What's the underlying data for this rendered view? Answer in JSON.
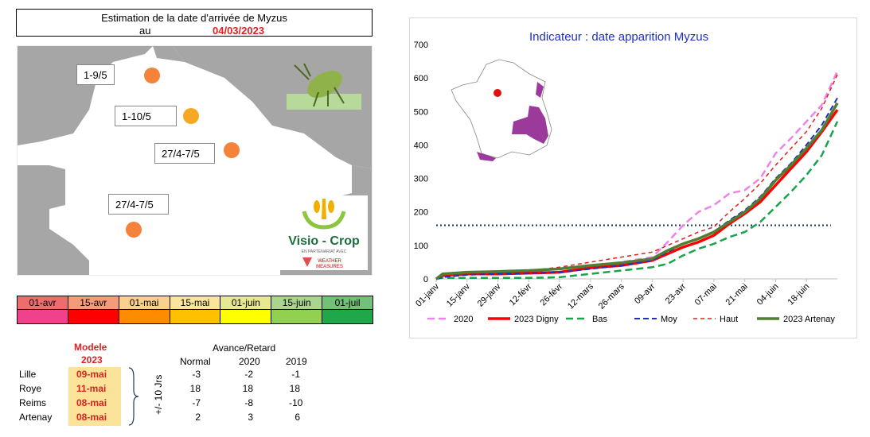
{
  "header": {
    "title": "Estimation de la date d'arrivée de Myzus",
    "au_label": "au",
    "date": "04/03/2023"
  },
  "map_labels": [
    {
      "text": "1-9/5",
      "color": "#f5823a"
    },
    {
      "text": "1-10/5",
      "color": "#f7a823"
    },
    {
      "text": "27/4-7/5",
      "color": "#f5823a"
    },
    {
      "text": "27/4-7/5",
      "color": "#f5823a"
    }
  ],
  "logo": {
    "line1": "Visio - Crop",
    "line2": "EN PARTENARIAT AVEC",
    "line3": "WEATHER MEASURES"
  },
  "scale": {
    "labels": [
      "01-avr",
      "15-avr",
      "01-mai",
      "15-mai",
      "01-juin",
      "15-juin",
      "01-juil"
    ],
    "top_colors": [
      "#ef6c6c",
      "#f79a7a",
      "#fbcf8c",
      "#fbe59b",
      "#e8e98f",
      "#a9d68f",
      "#72c178"
    ],
    "bottom_colors": [
      "#f0418d",
      "#ff0000",
      "#ff8c00",
      "#ffc000",
      "#ffff00",
      "#92d050",
      "#1fa84a"
    ]
  },
  "table": {
    "modele_label": "Modele",
    "year_label": "2023",
    "avance_label": "Avance/Retard",
    "cols": [
      "Normal",
      "2020",
      "2019"
    ],
    "side_label": "+/- 10 Jrs",
    "rows": [
      {
        "site": "Lille",
        "date": "09-mai",
        "vals": [
          "-3",
          "-2",
          "-1"
        ]
      },
      {
        "site": "Roye",
        "date": "11-mai",
        "vals": [
          "18",
          "18",
          "18"
        ]
      },
      {
        "site": "Reims",
        "date": "08-mai",
        "vals": [
          "-7",
          "-8",
          "-10"
        ]
      },
      {
        "site": "Artenay",
        "date": "08-mai",
        "vals": [
          "2",
          "3",
          "6"
        ]
      }
    ]
  },
  "chart_data": {
    "type": "line",
    "title": "Indicateur : date apparition Myzus",
    "x_ticks": [
      "01-janv",
      "15-janv",
      "29-janv",
      "12-févr",
      "26-févr",
      "12-mars",
      "26-mars",
      "09-avr",
      "23-avr",
      "07-mai",
      "21-mai",
      "04-juin",
      "18-juin"
    ],
    "x_range_days": [
      0,
      182
    ],
    "ylim": [
      0,
      700
    ],
    "y_ticks": [
      0,
      100,
      200,
      300,
      400,
      500,
      600,
      700
    ],
    "threshold": 160,
    "series": [
      {
        "name": "2020",
        "color": "#ee82ee",
        "dash": "9,5",
        "width": 2.5,
        "points": [
          [
            0,
            0
          ],
          [
            3,
            12
          ],
          [
            14,
            18
          ],
          [
            28,
            20
          ],
          [
            42,
            22
          ],
          [
            56,
            30
          ],
          [
            70,
            40
          ],
          [
            84,
            50
          ],
          [
            98,
            65
          ],
          [
            105,
            110
          ],
          [
            112,
            160
          ],
          [
            119,
            200
          ],
          [
            126,
            220
          ],
          [
            133,
            255
          ],
          [
            140,
            265
          ],
          [
            147,
            300
          ],
          [
            154,
            375
          ],
          [
            161,
            420
          ],
          [
            168,
            470
          ],
          [
            175,
            520
          ],
          [
            182,
            620
          ]
        ]
      },
      {
        "name": "2023 Digny",
        "color": "#ff0000",
        "dash": "",
        "width": 3.5,
        "points": [
          [
            0,
            0
          ],
          [
            3,
            10
          ],
          [
            14,
            15
          ],
          [
            28,
            15
          ],
          [
            42,
            17
          ],
          [
            56,
            20
          ],
          [
            70,
            33
          ],
          [
            84,
            40
          ],
          [
            98,
            55
          ],
          [
            105,
            75
          ],
          [
            112,
            95
          ],
          [
            119,
            110
          ],
          [
            126,
            130
          ],
          [
            133,
            165
          ],
          [
            140,
            195
          ],
          [
            147,
            230
          ],
          [
            154,
            280
          ],
          [
            161,
            330
          ],
          [
            168,
            380
          ],
          [
            175,
            440
          ],
          [
            182,
            505
          ]
        ]
      },
      {
        "name": "Bas",
        "color": "#1aa34a",
        "dash": "9,5",
        "width": 2.5,
        "points": [
          [
            0,
            0
          ],
          [
            3,
            3
          ],
          [
            14,
            3
          ],
          [
            28,
            3
          ],
          [
            42,
            3
          ],
          [
            56,
            5
          ],
          [
            70,
            15
          ],
          [
            84,
            25
          ],
          [
            98,
            35
          ],
          [
            105,
            45
          ],
          [
            112,
            70
          ],
          [
            119,
            90
          ],
          [
            126,
            105
          ],
          [
            133,
            125
          ],
          [
            140,
            140
          ],
          [
            147,
            170
          ],
          [
            154,
            215
          ],
          [
            161,
            260
          ],
          [
            168,
            310
          ],
          [
            175,
            370
          ],
          [
            182,
            470
          ]
        ]
      },
      {
        "name": "Moy",
        "color": "#1f2fc2",
        "dash": "7,4",
        "width": 2,
        "points": [
          [
            0,
            0
          ],
          [
            3,
            5
          ],
          [
            14,
            12
          ],
          [
            28,
            15
          ],
          [
            42,
            17
          ],
          [
            56,
            20
          ],
          [
            70,
            30
          ],
          [
            84,
            40
          ],
          [
            98,
            55
          ],
          [
            105,
            80
          ],
          [
            112,
            105
          ],
          [
            119,
            120
          ],
          [
            126,
            140
          ],
          [
            133,
            175
          ],
          [
            140,
            205
          ],
          [
            147,
            245
          ],
          [
            154,
            300
          ],
          [
            161,
            345
          ],
          [
            168,
            400
          ],
          [
            175,
            460
          ],
          [
            182,
            540
          ]
        ]
      },
      {
        "name": "Haut",
        "color": "#e02020",
        "dash": "5,4",
        "width": 1.5,
        "points": [
          [
            0,
            0
          ],
          [
            3,
            12
          ],
          [
            14,
            20
          ],
          [
            28,
            22
          ],
          [
            42,
            25
          ],
          [
            56,
            35
          ],
          [
            70,
            50
          ],
          [
            84,
            65
          ],
          [
            98,
            80
          ],
          [
            105,
            100
          ],
          [
            112,
            120
          ],
          [
            119,
            140
          ],
          [
            126,
            155
          ],
          [
            133,
            200
          ],
          [
            140,
            240
          ],
          [
            147,
            285
          ],
          [
            154,
            340
          ],
          [
            161,
            390
          ],
          [
            168,
            440
          ],
          [
            175,
            510
          ],
          [
            182,
            610
          ]
        ]
      },
      {
        "name": "2023 Artenay",
        "color": "#507e32",
        "dash": "",
        "width": 3.5,
        "points": [
          [
            0,
            0
          ],
          [
            3,
            15
          ],
          [
            14,
            20
          ],
          [
            28,
            22
          ],
          [
            42,
            25
          ],
          [
            56,
            30
          ],
          [
            70,
            40
          ],
          [
            84,
            48
          ],
          [
            98,
            60
          ],
          [
            105,
            85
          ],
          [
            112,
            105
          ],
          [
            119,
            120
          ],
          [
            126,
            140
          ],
          [
            133,
            170
          ],
          [
            140,
            200
          ],
          [
            147,
            240
          ],
          [
            154,
            295
          ],
          [
            161,
            340
          ],
          [
            168,
            390
          ],
          [
            175,
            445
          ],
          [
            182,
            525
          ]
        ]
      }
    ]
  }
}
